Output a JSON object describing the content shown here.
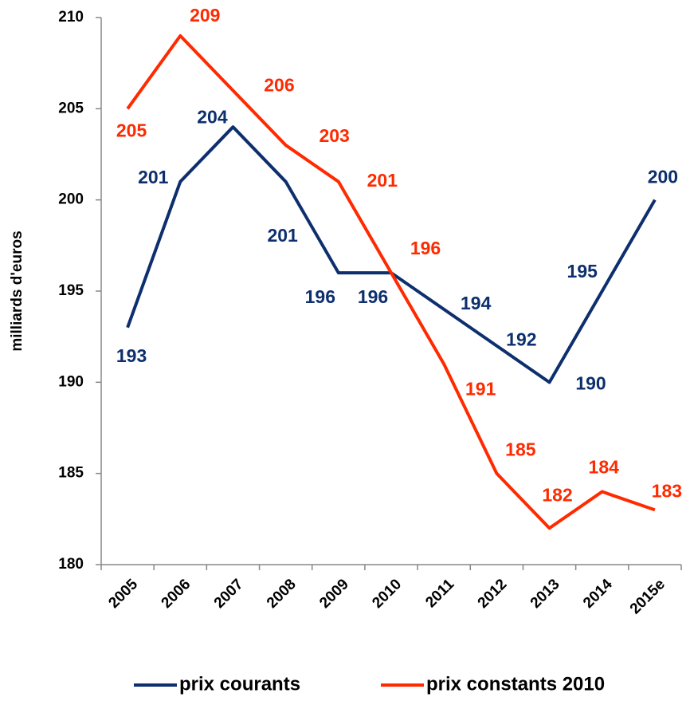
{
  "chart_data": {
    "type": "line",
    "y_label": "milliards d'euros",
    "categories": [
      "2005",
      "2006",
      "2007",
      "2008",
      "2009",
      "2010",
      "2011",
      "2012",
      "2013",
      "2014",
      "2015e"
    ],
    "series": [
      {
        "name": "prix courants",
        "color": "#0d2f6e",
        "values": [
          193,
          201,
          204,
          201,
          196,
          196,
          194,
          192,
          190,
          195,
          200
        ]
      },
      {
        "name": "prix constants 2010",
        "color": "#ff2a00",
        "values": [
          205,
          209,
          206,
          203,
          201,
          196,
          191,
          185,
          182,
          184,
          183
        ]
      }
    ],
    "ylim": [
      180,
      210
    ],
    "yticks": [
      180,
      185,
      190,
      195,
      200,
      205,
      210
    ]
  }
}
